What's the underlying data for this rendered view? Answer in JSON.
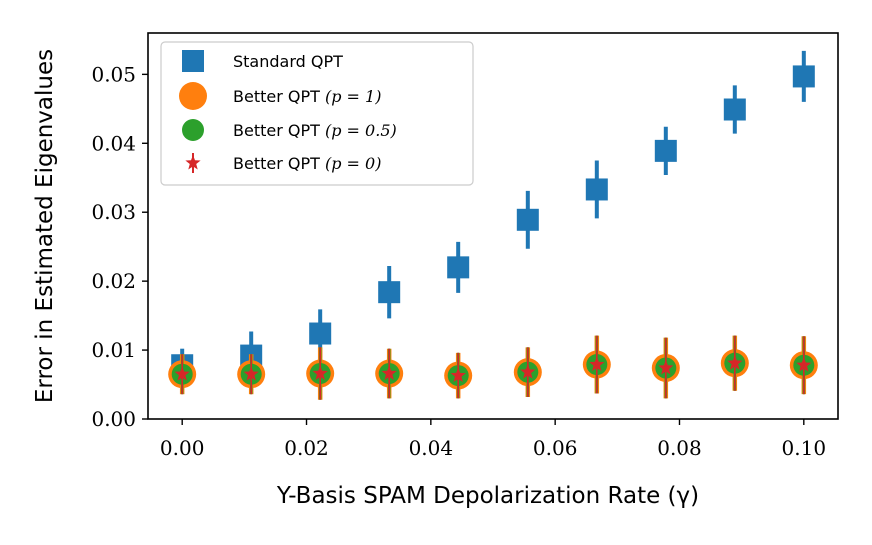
{
  "chart_data": {
    "type": "scatter",
    "title": "",
    "xlabel": "Y-Basis SPAM Depolarization Rate (γ)",
    "ylabel": "Error in Estimated Eigenvalues",
    "xlim": [
      -0.0055,
      0.1055
    ],
    "ylim": [
      0.0,
      0.056
    ],
    "xticks": [
      0.0,
      0.02,
      0.04,
      0.06,
      0.08,
      0.1
    ],
    "xtick_labels": [
      "0.00",
      "0.02",
      "0.04",
      "0.06",
      "0.08",
      "0.10"
    ],
    "yticks": [
      0.0,
      0.01,
      0.02,
      0.03,
      0.04,
      0.05
    ],
    "ytick_labels": [
      "0.00",
      "0.01",
      "0.02",
      "0.03",
      "0.04",
      "0.05"
    ],
    "grid": false,
    "legend_position": "top-left",
    "x": [
      0.0,
      0.0111,
      0.0222,
      0.0333,
      0.0444,
      0.0556,
      0.0667,
      0.0778,
      0.0889,
      0.1
    ],
    "series": [
      {
        "name": "Standard QPT",
        "marker": "square",
        "color": "#1f77b4",
        "values": [
          0.0078,
          0.0092,
          0.0124,
          0.0184,
          0.022,
          0.0289,
          0.0333,
          0.0389,
          0.0449,
          0.0497
        ],
        "errors": [
          0.0024,
          0.0035,
          0.0035,
          0.0038,
          0.0037,
          0.0042,
          0.0042,
          0.0035,
          0.0035,
          0.0037
        ]
      },
      {
        "name": "Better QPT (p = 1)",
        "marker": "circle",
        "color": "#ff7f0e",
        "values": [
          0.0065,
          0.0065,
          0.0066,
          0.0066,
          0.0063,
          0.0068,
          0.0079,
          0.0074,
          0.0081,
          0.0078
        ],
        "errors": [
          0.0029,
          0.0029,
          0.0038,
          0.0036,
          0.0033,
          0.0036,
          0.0042,
          0.0044,
          0.004,
          0.0042
        ]
      },
      {
        "name": "Better QPT (p = 0.5)",
        "marker": "circle",
        "color": "#2ca02c",
        "values": [
          0.0065,
          0.0065,
          0.0066,
          0.0066,
          0.0063,
          0.0068,
          0.0079,
          0.0074,
          0.0081,
          0.0078
        ],
        "errors": [
          0.0029,
          0.0029,
          0.0038,
          0.0036,
          0.0033,
          0.0036,
          0.0042,
          0.0044,
          0.004,
          0.0042
        ]
      },
      {
        "name": "Better QPT (p = 0)",
        "marker": "star",
        "color": "#d62728",
        "values": [
          0.0065,
          0.0065,
          0.0066,
          0.0066,
          0.0063,
          0.0068,
          0.0079,
          0.0074,
          0.0081,
          0.0078
        ],
        "errors": [
          0.0029,
          0.0029,
          0.0038,
          0.0036,
          0.0033,
          0.0036,
          0.0042,
          0.0044,
          0.004,
          0.0042
        ]
      }
    ],
    "legend": {
      "entries": [
        {
          "label_main": "Standard QPT",
          "label_math": ""
        },
        {
          "label_main": "Better QPT ",
          "label_math": "(p = 1)"
        },
        {
          "label_main": "Better QPT ",
          "label_math": "(p = 0.5)"
        },
        {
          "label_main": "Better QPT ",
          "label_math": "(p = 0)"
        }
      ]
    }
  }
}
